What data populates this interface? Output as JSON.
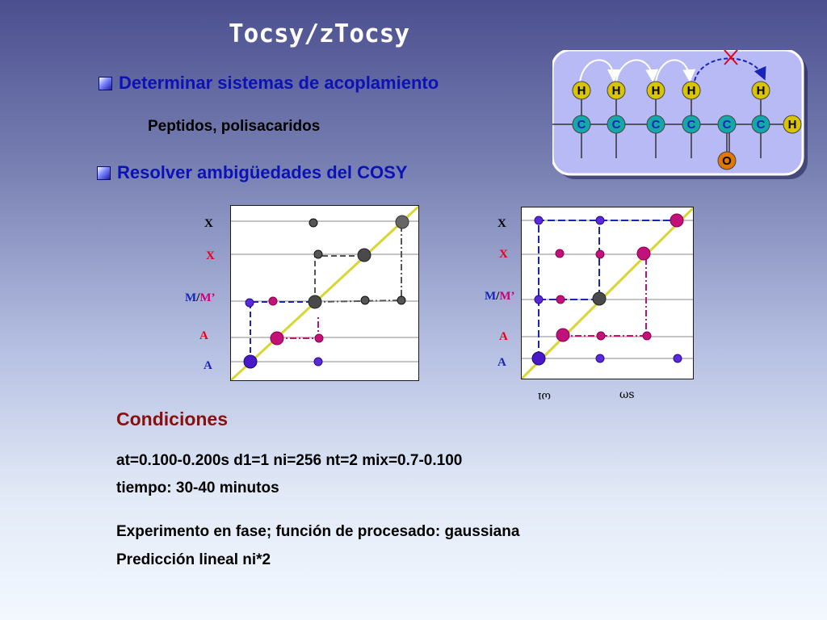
{
  "slide": {
    "title": "Tocsy/zTocsy",
    "bullet1": "Determinar sistemas de acoplamiento",
    "sub1": "Peptidos, polisacaridos",
    "bullet2": "Resolver ambigüedades del COSY",
    "conditions": {
      "heading": "Condiciones",
      "line1": "at=0.100-0.200s d1=1 ni=256 nt=2 mix=0.7-0.100",
      "line2": "tiempo: 30-40 minutos",
      "line3": "Experimento en fase; función de procesado: gaussiana",
      "line4": "Predicción lineal ni*2"
    }
  },
  "molecule": {
    "h_labels": [
      "H",
      "H",
      "H",
      "H",
      "H"
    ],
    "c_labels": [
      "C",
      "C",
      "C",
      "C",
      "C",
      "C"
    ],
    "end_h": "H",
    "o_label": "O",
    "colors": {
      "hydrogen": "#d8c400",
      "carbon": "#15a8a8",
      "oxygen": "#e07800",
      "arrow_blue": "#1a24b8",
      "cross": "#e8001a"
    }
  },
  "plot_left": {
    "labels": {
      "x1": "X",
      "x2": "X",
      "m_blue": "M",
      "slash": "/",
      "m_mag": "M’",
      "a1": "A",
      "a2": "A"
    }
  },
  "plot_right": {
    "labels": {
      "x1": "X",
      "x2": "X",
      "m_blue": "M",
      "slash": "/",
      "m_mag": "M’",
      "a1": "A",
      "a2": "A"
    },
    "axis_label_1": "ωı",
    "axis_label_2": "ωs"
  },
  "colors": {
    "diagonal": "#d8d630",
    "blue_peak": "#4a18c8",
    "magenta_peak": "#c2127a",
    "gray_peak": "#4a4a4a",
    "title": "#ffffff",
    "bullet_text": "#0c12b6",
    "heading": "#8a0f0f"
  }
}
